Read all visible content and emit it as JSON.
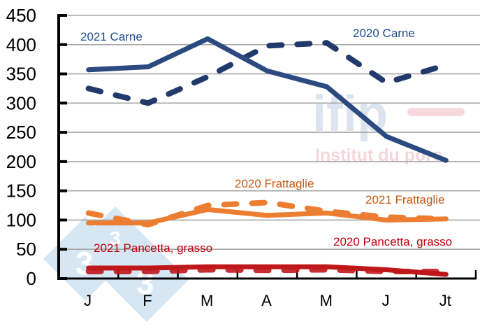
{
  "chart_data": {
    "type": "line",
    "title": "",
    "xlabel": "",
    "ylabel": "",
    "ylim": [
      0,
      450
    ],
    "yticks": [
      0,
      50,
      100,
      150,
      200,
      250,
      300,
      350,
      400,
      450
    ],
    "grid": true,
    "categories": [
      "J",
      "F",
      "M",
      "A",
      "M",
      "J",
      "Jt"
    ],
    "series": [
      {
        "name": "2021 Carne",
        "style": "solid",
        "color": "#2B4A80",
        "values": [
          357,
          362,
          410,
          355,
          328,
          243,
          202
        ]
      },
      {
        "name": "2020 Carne",
        "style": "dashed",
        "color": "#22396B",
        "values": [
          325,
          300,
          345,
          398,
          403,
          335,
          365
        ]
      },
      {
        "name": "2021 Frattaglie",
        "style": "solid",
        "color": "#ED7D31",
        "values": [
          95,
          95,
          118,
          108,
          112,
          100,
          102
        ]
      },
      {
        "name": "2020 Frattaglie",
        "style": "dashed",
        "color": "#ED7D31",
        "values": [
          112,
          92,
          125,
          130,
          115,
          105,
          102
        ]
      },
      {
        "name": "2021 Pancetta, grasso",
        "style": "solid",
        "color": "#C0171B",
        "values": [
          18,
          18,
          20,
          20,
          20,
          15,
          7
        ]
      },
      {
        "name": "2020 Pancetta, grasso",
        "style": "dashed",
        "color": "#C0171B",
        "values": [
          12,
          12,
          15,
          14,
          15,
          12,
          12
        ]
      }
    ],
    "annotations": [
      {
        "text": "2021 Carne",
        "color": "#1F4E8C"
      },
      {
        "text": "2020 Carne",
        "color": "#1F4E8C"
      },
      {
        "text": "2020 Frattaglie",
        "color": "#C55A11"
      },
      {
        "text": "2021 Frattaglie",
        "color": "#C55A11"
      },
      {
        "text": "2021 Pancetta, grasso",
        "color": "#C0000E"
      },
      {
        "text": "2020 Pancetta, grasso",
        "color": "#C0000E"
      }
    ]
  },
  "watermarks": {
    "ifip_logo": "ifip",
    "ifip_tagline": "Institut du porc",
    "site_logo": "333"
  }
}
